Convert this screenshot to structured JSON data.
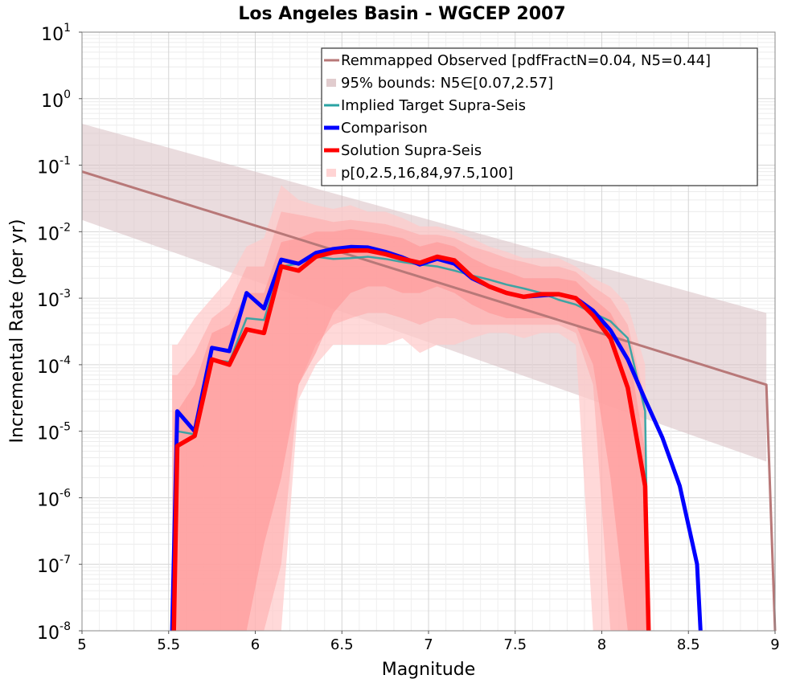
{
  "chart_data": {
    "type": "line",
    "title": "Los Angeles Basin - WGCEP 2007",
    "xlabel": "Magnitude",
    "ylabel": "Incremental Rate (per yr)",
    "xlim": [
      5,
      9
    ],
    "ylim": [
      1e-08,
      10
    ],
    "yscale": "log",
    "grid": true,
    "x_ticks": [
      "5",
      "5.5",
      "6",
      "6.5",
      "7",
      "7.5",
      "8",
      "8.5",
      "9"
    ],
    "y_ticks": [
      {
        "base": "10",
        "exp": "1"
      },
      {
        "base": "10",
        "exp": "0"
      },
      {
        "base": "10",
        "exp": "-1"
      },
      {
        "base": "10",
        "exp": "-2"
      },
      {
        "base": "10",
        "exp": "-3"
      },
      {
        "base": "10",
        "exp": "-4"
      },
      {
        "base": "10",
        "exp": "-5"
      },
      {
        "base": "10",
        "exp": "-6"
      },
      {
        "base": "10",
        "exp": "-7"
      },
      {
        "base": "10",
        "exp": "-8"
      }
    ],
    "legend_position": "top-right",
    "colors": {
      "observed": "#b87878",
      "bounds": "#d9bfc2",
      "target": "#2aa3a3",
      "comparison": "#0000ff",
      "solution": "#ff0000",
      "fractiles_outer": "#ffc9c9",
      "fractiles_mid": "#ffaaaa",
      "fractiles_inner": "#ff9191"
    },
    "legend": [
      {
        "key": "observed",
        "label": "Remmapped Observed [pdfFractN=0.04, N5=0.44]",
        "kind": "line"
      },
      {
        "key": "bounds",
        "label": "95% bounds: N5∈[0.07,2.57]",
        "kind": "fill"
      },
      {
        "key": "target",
        "label": "Implied Target Supra-Seis",
        "kind": "line"
      },
      {
        "key": "comparison",
        "label": "Comparison",
        "kind": "thick"
      },
      {
        "key": "solution",
        "label": "Solution Supra-Seis",
        "kind": "thick"
      },
      {
        "key": "fractiles_outer",
        "label": "p[0,2.5,16,84,97.5,100]",
        "kind": "fill"
      }
    ],
    "series": [
      {
        "key": "observed",
        "name": "Remmapped Observed [pdfFractN=0.04, N5=0.44]",
        "x": [
          5.0,
          8.95,
          8.95,
          9.0
        ],
        "y": [
          0.08,
          5e-05,
          5e-05,
          1e-08
        ]
      },
      {
        "key": "target",
        "name": "Implied Target Supra-Seis",
        "x": [
          5.55,
          5.65,
          5.75,
          5.85,
          5.95,
          6.05,
          6.15,
          6.25,
          6.35,
          6.45,
          6.55,
          6.65,
          6.75,
          6.85,
          6.95,
          7.05,
          7.15,
          7.25,
          7.35,
          7.45,
          7.55,
          7.65,
          7.75,
          7.85,
          7.95,
          8.05,
          8.15,
          8.25,
          8.27
        ],
        "y": [
          1e-05,
          9e-06,
          0.00012,
          0.00011,
          0.0005,
          0.00047,
          0.003,
          0.0033,
          0.0042,
          0.0039,
          0.004,
          0.0042,
          0.0039,
          0.0035,
          0.0032,
          0.003,
          0.0026,
          0.0022,
          0.0019,
          0.0016,
          0.0014,
          0.0012,
          0.00095,
          0.0008,
          0.0006,
          0.00045,
          0.00025,
          2e-05,
          1e-08
        ]
      },
      {
        "key": "comparison",
        "name": "Comparison",
        "x": [
          5.52,
          5.55,
          5.65,
          5.75,
          5.85,
          5.95,
          6.05,
          6.15,
          6.25,
          6.35,
          6.45,
          6.55,
          6.65,
          6.75,
          6.85,
          6.95,
          7.05,
          7.15,
          7.25,
          7.35,
          7.45,
          7.55,
          7.65,
          7.75,
          7.85,
          7.95,
          8.05,
          8.15,
          8.25,
          8.35,
          8.45,
          8.55,
          8.57
        ],
        "y": [
          1e-08,
          2e-05,
          1e-05,
          0.00018,
          0.00016,
          0.0012,
          0.0007,
          0.0038,
          0.0033,
          0.0048,
          0.0055,
          0.0059,
          0.0058,
          0.005,
          0.0041,
          0.0032,
          0.0039,
          0.0033,
          0.002,
          0.0015,
          0.0012,
          0.00105,
          0.0011,
          0.00115,
          0.001,
          0.00065,
          0.00033,
          0.00012,
          3e-05,
          8e-06,
          1.5e-06,
          1e-07,
          1e-08
        ]
      },
      {
        "key": "solution",
        "name": "Solution Supra-Seis",
        "x": [
          5.53,
          5.55,
          5.65,
          5.75,
          5.85,
          5.95,
          6.05,
          6.15,
          6.25,
          6.35,
          6.45,
          6.55,
          6.65,
          6.75,
          6.85,
          6.95,
          7.05,
          7.15,
          7.25,
          7.35,
          7.45,
          7.55,
          7.65,
          7.75,
          7.85,
          7.95,
          8.05,
          8.15,
          8.25,
          8.27
        ],
        "y": [
          1e-08,
          6e-06,
          8.5e-06,
          0.00012,
          0.0001,
          0.00034,
          0.0003,
          0.003,
          0.0026,
          0.0042,
          0.0049,
          0.0052,
          0.0052,
          0.0046,
          0.0039,
          0.0034,
          0.0042,
          0.0037,
          0.0021,
          0.0015,
          0.0012,
          0.00105,
          0.00115,
          0.00115,
          0.001,
          0.00055,
          0.00025,
          4.5e-05,
          1.5e-06,
          1e-08
        ]
      }
    ],
    "bands": [
      {
        "key": "bounds",
        "x": [
          5.0,
          8.95
        ],
        "lower": [
          0.015,
          3.5e-06
        ],
        "upper": [
          0.42,
          0.0006
        ]
      },
      {
        "key": "fractiles_outer",
        "x": [
          5.52,
          5.55,
          5.65,
          5.75,
          5.85,
          5.95,
          6.05,
          6.15,
          6.25,
          6.35,
          6.45,
          6.55,
          6.65,
          6.75,
          6.85,
          6.95,
          7.05,
          7.15,
          7.25,
          7.35,
          7.45,
          7.55,
          7.65,
          7.75,
          7.85,
          7.95,
          8.05,
          8.15,
          8.25,
          8.27
        ],
        "lower": [
          1e-08,
          1e-08,
          1e-08,
          1e-08,
          1e-08,
          1e-08,
          1e-08,
          1e-08,
          3e-05,
          0.0001,
          0.0002,
          0.0002,
          0.0002,
          0.0002,
          0.00025,
          0.00015,
          0.0002,
          0.0002,
          0.00025,
          0.0003,
          0.0003,
          0.00025,
          0.0003,
          0.0003,
          0.0002,
          1e-08,
          1e-08,
          1e-08,
          1e-08,
          1e-08
        ],
        "upper": [
          0.0002,
          0.0002,
          0.0005,
          0.001,
          0.002,
          0.006,
          0.008,
          0.05,
          0.03,
          0.025,
          0.022,
          0.025,
          0.02,
          0.02,
          0.016,
          0.012,
          0.012,
          0.01,
          0.008,
          0.006,
          0.005,
          0.004,
          0.004,
          0.004,
          0.003,
          0.002,
          0.0015,
          0.0008,
          0.0001,
          1e-08
        ]
      },
      {
        "key": "fractiles_mid",
        "x": [
          5.52,
          5.55,
          5.65,
          5.75,
          5.85,
          5.95,
          6.05,
          6.15,
          6.25,
          6.35,
          6.45,
          6.55,
          6.65,
          6.75,
          6.85,
          6.95,
          7.05,
          7.15,
          7.25,
          7.35,
          7.45,
          7.55,
          7.65,
          7.75,
          7.85,
          7.95,
          8.05,
          8.15,
          8.25,
          8.27
        ],
        "lower": [
          1e-08,
          1e-08,
          1e-08,
          1e-08,
          1e-08,
          1e-08,
          1e-08,
          1e-07,
          5e-05,
          0.0002,
          0.0004,
          0.0005,
          0.0006,
          0.0006,
          0.0005,
          0.0004,
          0.0005,
          0.0005,
          0.0004,
          0.0004,
          0.0004,
          0.0004,
          0.0004,
          0.0004,
          0.0003,
          5e-05,
          1e-08,
          1e-08,
          1e-08,
          1e-08
        ],
        "upper": [
          7e-05,
          7e-05,
          0.00015,
          0.0005,
          0.0008,
          0.003,
          0.003,
          0.02,
          0.018,
          0.016,
          0.014,
          0.015,
          0.014,
          0.013,
          0.011,
          0.009,
          0.009,
          0.008,
          0.006,
          0.005,
          0.004,
          0.0035,
          0.003,
          0.003,
          0.0025,
          0.0015,
          0.001,
          0.0004,
          3e-05,
          1e-08
        ]
      },
      {
        "key": "fractiles_inner",
        "x": [
          5.53,
          5.55,
          5.65,
          5.75,
          5.85,
          5.95,
          6.05,
          6.15,
          6.25,
          6.35,
          6.45,
          6.55,
          6.65,
          6.75,
          6.85,
          6.95,
          7.05,
          7.15,
          7.25,
          7.35,
          7.45,
          7.55,
          7.65,
          7.75,
          7.85,
          7.95,
          8.05,
          8.15,
          8.25,
          8.27
        ],
        "lower": [
          1e-08,
          1e-08,
          1e-08,
          1e-08,
          1e-08,
          1e-08,
          2e-07,
          2e-06,
          5e-05,
          0.00015,
          0.0006,
          0.0012,
          0.0015,
          0.0015,
          0.0012,
          0.0012,
          0.0015,
          0.0012,
          0.0008,
          0.0006,
          0.0005,
          0.0005,
          0.0005,
          0.0005,
          0.0004,
          0.0001,
          2e-06,
          1e-08,
          1e-08,
          1e-08
        ],
        "upper": [
          2e-05,
          2e-05,
          5e-05,
          0.0003,
          0.0004,
          0.0012,
          0.0012,
          0.007,
          0.008,
          0.01,
          0.01,
          0.011,
          0.01,
          0.009,
          0.008,
          0.006,
          0.007,
          0.006,
          0.004,
          0.003,
          0.0025,
          0.002,
          0.002,
          0.002,
          0.0018,
          0.001,
          0.0006,
          0.0002,
          5e-06,
          1e-08
        ]
      }
    ]
  }
}
